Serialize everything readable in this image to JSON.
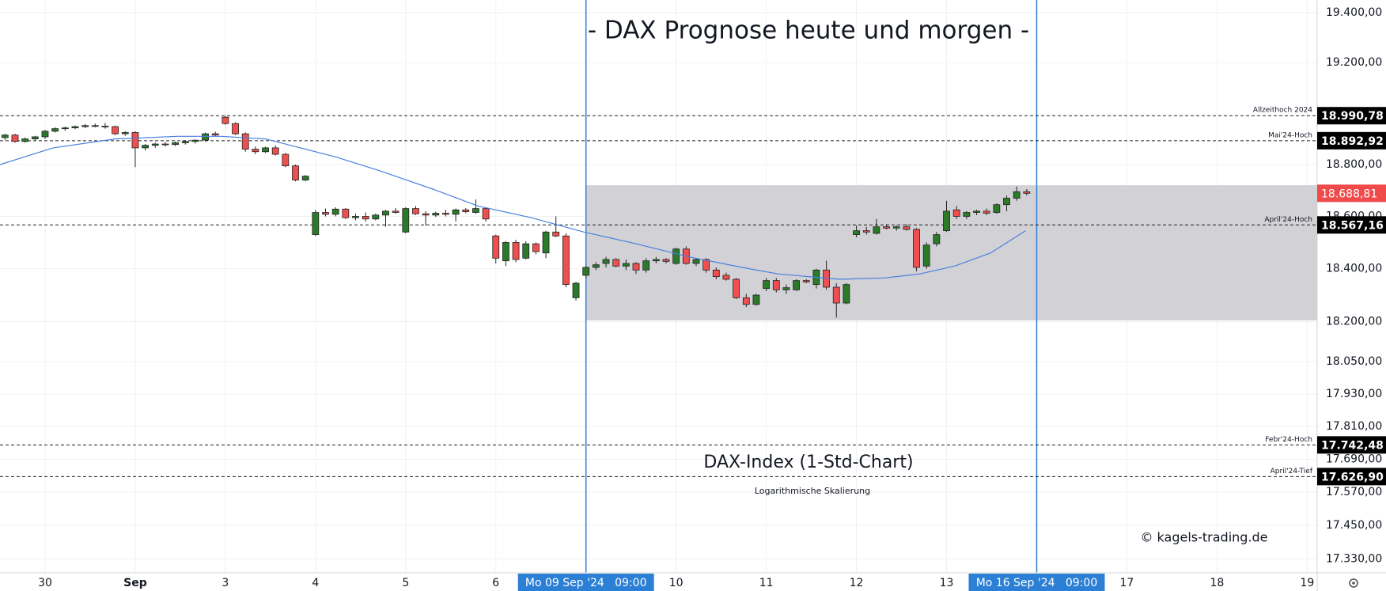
{
  "chart_data": {
    "type": "candlestick",
    "title": "- DAX Prognose heute und morgen -",
    "annotations": [
      "DAX-Index (1-Std-Chart)",
      "Logarithmische Skalierung",
      "© kagels-trading.de"
    ],
    "log_scale": true,
    "grid": true,
    "ylim": [
      17280,
      19450
    ],
    "yticks": [
      {
        "value": 19400,
        "label": "19.400,00"
      },
      {
        "value": 19200,
        "label": "19.200,00"
      },
      {
        "value": 18800,
        "label": "18.800,00"
      },
      {
        "value": 18600,
        "label": "18.600,00"
      },
      {
        "value": 18400,
        "label": "18.400,00"
      },
      {
        "value": 18200,
        "label": "18.200,00"
      },
      {
        "value": 18050,
        "label": "18.050,00"
      },
      {
        "value": 17930,
        "label": "17.930,00"
      },
      {
        "value": 17810,
        "label": "17.810,00"
      },
      {
        "value": 17690,
        "label": "17.690,00"
      },
      {
        "value": 17570,
        "label": "17.570,00"
      },
      {
        "value": 17450,
        "label": "17.450,00"
      },
      {
        "value": 17330,
        "label": "17.330,00"
      }
    ],
    "xlim": [
      0,
      131.5
    ],
    "xticks": [
      {
        "value": 4.5,
        "label": "30"
      },
      {
        "value": 13.5,
        "label": "Sep"
      },
      {
        "value": 22.5,
        "label": "3"
      },
      {
        "value": 31.5,
        "label": "4"
      },
      {
        "value": 40.5,
        "label": "5"
      },
      {
        "value": 49.5,
        "label": "6"
      },
      {
        "value": 58.5,
        "label": "Mo 09 Sep '24   09:00"
      },
      {
        "value": 67.5,
        "label": "10"
      },
      {
        "value": 76.5,
        "label": "11"
      },
      {
        "value": 85.5,
        "label": "12"
      },
      {
        "value": 94.5,
        "label": "13"
      },
      {
        "value": 103.5,
        "label": "Mo 16 Sep '24   09:00"
      },
      {
        "value": 112.5,
        "label": "17"
      },
      {
        "value": 121.5,
        "label": "18"
      },
      {
        "value": 130.5,
        "label": "19"
      }
    ],
    "vlines": [
      58.5,
      103.5
    ],
    "vline_color": "#2b7fd4",
    "up_color": "#2a7a2a",
    "down_color": "#ef4f4f",
    "candles": {
      "x": [
        0.5,
        1.5,
        2.5,
        3.5,
        4.5,
        5.5,
        6.5,
        7.5,
        8.5,
        9.5,
        10.5,
        11.5,
        12.5,
        13.5,
        14.5,
        15.5,
        16.5,
        17.5,
        18.5,
        19.5,
        20.5,
        21.5,
        22.5,
        23.5,
        24.5,
        25.5,
        26.5,
        27.5,
        28.5,
        29.5,
        30.5,
        31.5,
        32.5,
        33.5,
        34.5,
        35.5,
        36.5,
        37.5,
        38.5,
        39.5,
        40.5,
        41.5,
        42.5,
        43.5,
        44.5,
        45.5,
        46.5,
        47.5,
        48.5,
        49.5,
        50.5,
        51.5,
        52.5,
        53.5,
        54.5,
        55.5,
        56.5,
        57.5,
        58.5,
        59.5,
        60.5,
        61.5,
        62.5,
        63.5,
        64.5,
        65.5,
        66.5,
        67.5,
        68.5,
        69.5,
        70.5,
        71.5,
        72.5,
        73.5,
        74.5,
        75.5,
        76.5,
        77.5,
        78.5,
        79.5,
        80.5,
        81.5,
        82.5,
        83.5,
        84.5,
        85.5,
        86.5,
        87.5,
        88.5,
        89.5,
        90.5,
        91.5,
        92.5,
        93.5,
        94.5,
        95.5,
        96.5,
        97.5,
        98.5,
        99.5,
        100.5,
        101.5,
        102.5
      ],
      "open": [
        18905,
        18915,
        18890,
        18900,
        18908,
        18930,
        18940,
        18943,
        18948,
        18952,
        18950,
        18948,
        18920,
        18925,
        18865,
        18875,
        18880,
        18878,
        18885,
        18890,
        18895,
        18920,
        18985,
        18960,
        18920,
        18860,
        18850,
        18865,
        18840,
        18795,
        18740,
        18530,
        18615,
        18608,
        18628,
        18595,
        18600,
        18590,
        18605,
        18620,
        18540,
        18630,
        18610,
        18605,
        18612,
        18608,
        18625,
        18615,
        18630,
        18525,
        18430,
        18500,
        18440,
        18495,
        18460,
        18540,
        18525,
        18290,
        18375,
        18405,
        18420,
        18435,
        18410,
        18420,
        18395,
        18430,
        18435,
        18420,
        18475,
        18420,
        18435,
        18395,
        18375,
        18360,
        18290,
        18265,
        18325,
        18355,
        18320,
        18320,
        18355,
        18340,
        18395,
        18330,
        18270,
        18530,
        18545,
        18535,
        18560,
        18555,
        18560,
        18550,
        18410,
        18495,
        18545,
        18625,
        18600,
        18615,
        18620,
        18615,
        18645,
        18670,
        18695
      ],
      "high": [
        18920,
        18920,
        18905,
        18912,
        18935,
        18945,
        18948,
        18952,
        18958,
        18960,
        18962,
        18952,
        18930,
        18930,
        18880,
        18885,
        18888,
        18890,
        18895,
        18898,
        18925,
        18928,
        18990,
        18965,
        18925,
        18870,
        18870,
        18875,
        18845,
        18800,
        18760,
        18625,
        18630,
        18635,
        18632,
        18610,
        18615,
        18610,
        18625,
        18632,
        18635,
        18640,
        18620,
        18618,
        18625,
        18630,
        18632,
        18665,
        18635,
        18530,
        18505,
        18510,
        18505,
        18500,
        18545,
        18600,
        18535,
        18350,
        18410,
        18425,
        18445,
        18440,
        18435,
        18425,
        18440,
        18445,
        18440,
        18480,
        18485,
        18440,
        18440,
        18405,
        18385,
        18365,
        18305,
        18305,
        18365,
        18365,
        18340,
        18360,
        18360,
        18400,
        18430,
        18345,
        18345,
        18565,
        18560,
        18590,
        18570,
        18565,
        18570,
        18555,
        18500,
        18540,
        18660,
        18640,
        18620,
        18625,
        18630,
        18650,
        18680,
        18715,
        18705
      ],
      "low": [
        18895,
        18885,
        18885,
        18895,
        18900,
        18925,
        18932,
        18938,
        18942,
        18945,
        18940,
        18915,
        18912,
        18790,
        18855,
        18865,
        18870,
        18872,
        18878,
        18882,
        18890,
        18910,
        18955,
        18915,
        18850,
        18840,
        18845,
        18835,
        18790,
        18735,
        18735,
        18525,
        18600,
        18600,
        18590,
        18585,
        18580,
        18585,
        18560,
        18610,
        18535,
        18605,
        18565,
        18598,
        18600,
        18580,
        18612,
        18610,
        18580,
        18420,
        18410,
        18425,
        18435,
        18455,
        18440,
        18520,
        18330,
        18280,
        18365,
        18395,
        18405,
        18405,
        18395,
        18380,
        18385,
        18420,
        18420,
        18415,
        18415,
        18410,
        18385,
        18360,
        18355,
        18285,
        18255,
        18260,
        18315,
        18310,
        18305,
        18315,
        18345,
        18325,
        18320,
        18215,
        18265,
        18520,
        18530,
        18530,
        18550,
        18545,
        18545,
        18390,
        18400,
        18485,
        18540,
        18590,
        18590,
        18605,
        18605,
        18610,
        18620,
        18660,
        18680
      ],
      "close": [
        18915,
        18890,
        18900,
        18908,
        18930,
        18940,
        18943,
        18948,
        18952,
        18950,
        18948,
        18920,
        18925,
        18865,
        18875,
        18880,
        18878,
        18885,
        18890,
        18895,
        18920,
        18915,
        18960,
        18920,
        18860,
        18850,
        18865,
        18840,
        18795,
        18740,
        18755,
        18615,
        18608,
        18628,
        18595,
        18600,
        18590,
        18605,
        18620,
        18615,
        18630,
        18610,
        18605,
        18612,
        18608,
        18625,
        18618,
        18630,
        18590,
        18440,
        18500,
        18435,
        18495,
        18465,
        18540,
        18525,
        18340,
        18345,
        18405,
        18415,
        18435,
        18410,
        18420,
        18395,
        18430,
        18435,
        18428,
        18475,
        18420,
        18435,
        18395,
        18370,
        18360,
        18290,
        18265,
        18300,
        18355,
        18320,
        18328,
        18355,
        18350,
        18395,
        18330,
        18270,
        18340,
        18545,
        18540,
        18560,
        18555,
        18560,
        18550,
        18405,
        18490,
        18530,
        18620,
        18600,
        18615,
        18620,
        18612,
        18645,
        18670,
        18695,
        18688.81
      ]
    },
    "ma": {
      "color": "#4a80e0",
      "x": [
        0,
        5.3,
        11.5,
        17.7,
        22.1,
        26.5,
        30,
        33.5,
        38,
        43.2,
        47.7,
        53,
        58.3,
        63.5,
        68.8,
        74.1,
        77.7,
        83.8,
        88.3,
        91.8,
        95.3,
        98.9,
        102.4
      ],
      "values": [
        18800,
        18865,
        18900,
        18910,
        18910,
        18900,
        18865,
        18830,
        18775,
        18705,
        18640,
        18595,
        18540,
        18495,
        18445,
        18405,
        18380,
        18360,
        18365,
        18380,
        18410,
        18460,
        18545
      ]
    },
    "zone": {
      "x": [
        58.5,
        131.5
      ],
      "y": [
        18205,
        18720
      ],
      "color": "#d1d1d6"
    },
    "levels": [
      {
        "name": "Allzeithoch 2024",
        "value": 18990.78,
        "value_label": "18.990,78"
      },
      {
        "name": "Mai'24-Hoch",
        "value": 18892.92,
        "value_label": "18.892,92"
      },
      {
        "name": "April'24-Hoch",
        "value": 18567.16,
        "value_label": "18.567,16"
      },
      {
        "name": "Febr'24-Hoch",
        "value": 17742.48,
        "value_label": "17.742,48"
      },
      {
        "name": "April'24-Tief",
        "value": 17626.9,
        "value_label": "17.626,90"
      }
    ],
    "last_price": {
      "value": 18688.81,
      "label": "18.688,81",
      "color": "#f04a4a"
    }
  }
}
